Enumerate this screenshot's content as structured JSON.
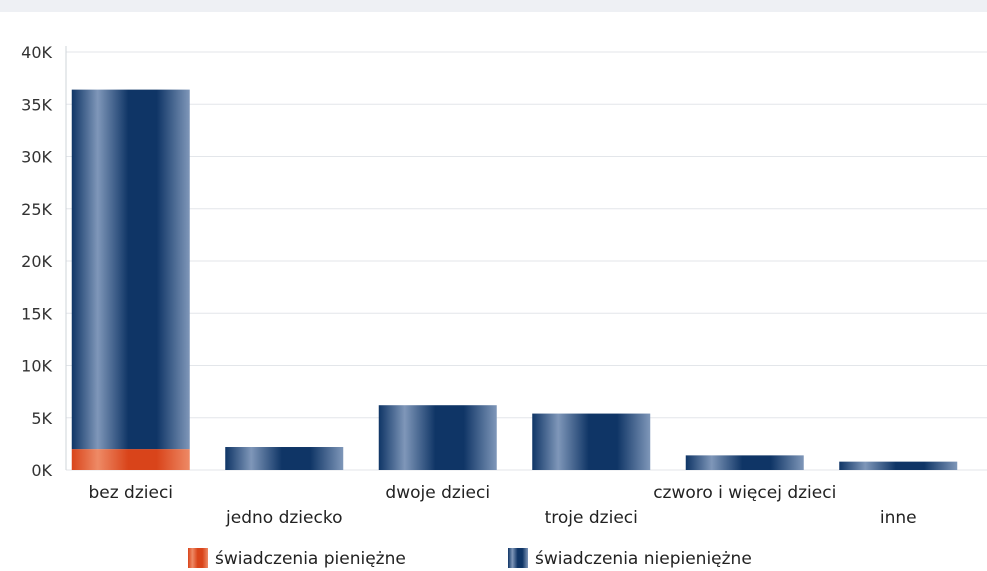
{
  "chart_data": {
    "type": "bar",
    "stacked": true,
    "categories": [
      "bez dzieci",
      "jedno dziecko",
      "dwoje dzieci",
      "troje dzieci",
      "czworo i więcej dzieci",
      "inne"
    ],
    "series": [
      {
        "name": "świadczenia pieniężne",
        "values": [
          2000,
          0,
          0,
          0,
          0,
          0
        ]
      },
      {
        "name": "świadczenia niepieniężne",
        "values": [
          34400,
          2200,
          6200,
          5400,
          1400,
          800
        ]
      }
    ],
    "yticks": [
      "0K",
      "5K",
      "10K",
      "15K",
      "20K",
      "25K",
      "30K",
      "35K",
      "40K"
    ],
    "ylim": [
      0,
      40000
    ],
    "grid": true,
    "legend_position": "bottom",
    "colors": {
      "monetary": "#d9441a",
      "monetary_light": "#ee8a66",
      "nonmonetary": "#0f3566",
      "nonmonetary_light": "#7f97b9"
    }
  }
}
